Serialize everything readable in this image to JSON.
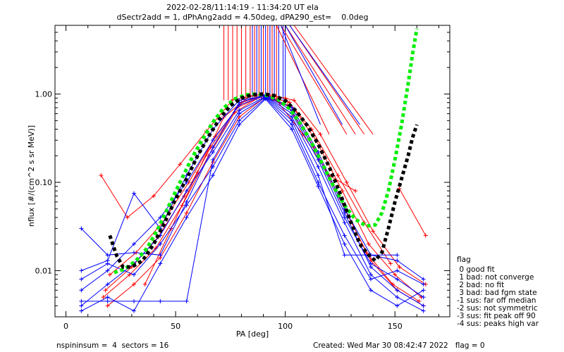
{
  "title_line1": "2022-02-28/11:14:19 - 11:34:20 UT ela",
  "title_line2": "dSectr2add = 1, dPhAng2add = 4.50deg, dPA290_est=    0.0deg",
  "footer": {
    "left": "nspininsum =  4  sectors = 16",
    "right": "Created: Wed Mar 30 08:42:47 2022   flag = 0"
  },
  "legend": {
    "title": "flag",
    "items": [
      " 0 good fit",
      " 1 bad: not converge",
      " 2 bad: no fit",
      " 3 bad: bad fgm state",
      "-1 sus: far off median",
      "-2 sus: not symmetric",
      "-3 sus: fit peak off 90",
      "-4 sus: peaks high var"
    ]
  },
  "chart_data": {
    "type": "line",
    "title": "2022-02-28/11:14:19 - 11:34:20 UT ela",
    "subtitle": "dSectr2add = 1, dPhAng2add = 4.50deg, dPA290_est=    0.0deg",
    "xlabel": "PA [deg]",
    "ylabel": "nflux [#/(cm^2 s sr MeV)]",
    "xlim": [
      -5,
      175
    ],
    "ylim": [
      0.003,
      6.0
    ],
    "y_scale": "log",
    "x_ticks": [
      0,
      50,
      100,
      150
    ],
    "x_tick_labels": [
      "0",
      "50",
      "100",
      "150"
    ],
    "y_ticks": [
      0.01,
      0.1,
      1.0
    ],
    "y_tick_labels": [
      "0.01",
      "0.10",
      "1.00"
    ],
    "grid": false,
    "legend_position": "right",
    "series": [
      {
        "color": "#ff0000",
        "marker": "+",
        "x": [
          16,
          28,
          40,
          52,
          64,
          76,
          88,
          100,
          112,
          124,
          136,
          148
        ],
        "y": [
          0.12,
          0.04,
          0.07,
          0.16,
          0.38,
          0.86,
          0.98,
          0.9,
          0.4,
          0.12,
          0.035,
          0.012
        ]
      },
      {
        "color": "#ff0000",
        "marker": "+",
        "x": [
          18,
          30,
          42,
          54,
          66,
          78,
          90,
          102,
          114,
          126,
          138,
          150,
          162
        ],
        "y": [
          0.006,
          0.011,
          0.024,
          0.07,
          0.25,
          0.7,
          0.97,
          0.8,
          0.3,
          0.08,
          0.02,
          0.009,
          0.005
        ]
      },
      {
        "color": "#ff0000",
        "marker": "+",
        "x": [
          17,
          29,
          41,
          53,
          65,
          77,
          89,
          101,
          113,
          125,
          137,
          149,
          161
        ],
        "y": [
          0.005,
          0.009,
          0.018,
          0.055,
          0.2,
          0.62,
          0.95,
          0.75,
          0.25,
          0.065,
          0.016,
          0.007,
          0.0045
        ]
      },
      {
        "color": "#ff0000",
        "marker": "+",
        "x": [
          19,
          31,
          43,
          55,
          67,
          79,
          91,
          103,
          115,
          127,
          139,
          151,
          163
        ],
        "y": [
          0.004,
          0.007,
          0.014,
          0.045,
          0.17,
          0.55,
          0.93,
          0.7,
          0.22,
          0.05,
          0.013,
          0.006,
          0.004
        ]
      },
      {
        "color": "#ff0000",
        "marker": "+",
        "x": [
          20,
          32,
          44,
          56,
          68,
          80,
          92,
          104,
          116,
          128,
          140,
          152,
          164
        ],
        "y": [
          0.009,
          0.016,
          0.035,
          0.1,
          0.33,
          0.8,
          0.99,
          0.85,
          0.35,
          0.1,
          0.028,
          0.011,
          0.007
        ]
      },
      {
        "color": "#ff0000",
        "marker": "+",
        "x": [
          36,
          48,
          60,
          72,
          84,
          96,
          108,
          120,
          132
        ],
        "y": [
          0.007,
          0.03,
          0.13,
          0.55,
          0.96,
          0.85,
          0.35,
          0.12,
          0.08
        ]
      },
      {
        "color": "#ff0000",
        "marker": "+",
        "x": [
          152,
          164
        ],
        "y": [
          0.085,
          0.025
        ]
      },
      {
        "color": "#0000ff",
        "marker": "+",
        "x": [
          7,
          19,
          31,
          43,
          55,
          67,
          79,
          91,
          103,
          115,
          127,
          139,
          151,
          163
        ],
        "y": [
          0.03,
          0.015,
          0.016,
          0.015,
          0.06,
          0.25,
          0.8,
          0.98,
          0.7,
          0.22,
          0.05,
          0.015,
          0.013,
          0.008
        ]
      },
      {
        "color": "#0000ff",
        "marker": "+",
        "x": [
          7,
          19,
          31,
          43,
          55,
          67,
          79,
          91,
          103,
          115,
          127,
          139,
          151,
          163
        ],
        "y": [
          0.01,
          0.013,
          0.075,
          0.03,
          0.12,
          0.4,
          0.85,
          0.95,
          0.6,
          0.18,
          0.04,
          0.012,
          0.008,
          0.005
        ]
      },
      {
        "color": "#0000ff",
        "marker": "+",
        "x": [
          7,
          19,
          31,
          43,
          55,
          67,
          79,
          91,
          103,
          115,
          127,
          139,
          151,
          163
        ],
        "y": [
          0.006,
          0.01,
          0.02,
          0.04,
          0.1,
          0.3,
          0.75,
          0.97,
          0.65,
          0.2,
          0.045,
          0.011,
          0.006,
          0.004
        ]
      },
      {
        "color": "#0000ff",
        "marker": "+",
        "x": [
          7,
          19,
          31,
          43,
          55,
          67,
          79,
          91,
          103,
          115,
          127,
          139,
          151,
          163
        ],
        "y": [
          0.004,
          0.007,
          0.012,
          0.025,
          0.08,
          0.22,
          0.65,
          0.94,
          0.55,
          0.15,
          0.035,
          0.009,
          0.005,
          0.0035
        ]
      },
      {
        "color": "#0000ff",
        "marker": "+",
        "x": [
          7,
          19,
          31,
          43,
          55,
          67,
          79,
          91,
          103,
          115,
          127,
          139,
          151
        ],
        "y": [
          0.0045,
          0.0045,
          0.0045,
          0.0045,
          0.0045,
          0.18,
          0.6,
          0.92,
          0.5,
          0.12,
          0.015,
          0.015,
          0.015
        ]
      },
      {
        "color": "#0000ff",
        "marker": "+",
        "x": [
          7,
          19,
          31,
          43,
          55,
          67,
          79,
          91,
          103,
          115,
          127,
          139,
          151,
          163
        ],
        "y": [
          0.008,
          0.012,
          0.009,
          0.02,
          0.055,
          0.15,
          0.5,
          0.9,
          0.45,
          0.1,
          0.025,
          0.008,
          0.01,
          0.007
        ]
      },
      {
        "color": "#0000ff",
        "marker": "+",
        "x": [
          7,
          19,
          31,
          43,
          55,
          67,
          79,
          91,
          103,
          115,
          127,
          139,
          151,
          163
        ],
        "y": [
          0.0035,
          0.005,
          0.0035,
          0.012,
          0.04,
          0.12,
          0.45,
          0.88,
          0.4,
          0.09,
          0.02,
          0.006,
          0.004,
          0.006
        ]
      }
    ],
    "fit_curves": [
      {
        "color": "#00ee00",
        "style": "dotted-thick",
        "x": [
          22,
          27,
          32,
          37,
          42,
          47,
          52,
          57,
          62,
          67,
          72,
          77,
          82,
          87,
          92,
          97,
          102,
          107,
          112,
          117,
          122,
          127,
          132,
          137,
          141,
          144,
          147,
          150,
          153,
          156,
          158,
          160
        ],
        "y": [
          0.0095,
          0.0105,
          0.013,
          0.018,
          0.03,
          0.055,
          0.1,
          0.18,
          0.3,
          0.48,
          0.7,
          0.88,
          0.98,
          1.0,
          0.96,
          0.86,
          0.68,
          0.46,
          0.28,
          0.16,
          0.09,
          0.055,
          0.038,
          0.032,
          0.033,
          0.045,
          0.08,
          0.18,
          0.45,
          1.3,
          2.8,
          5.5
        ]
      },
      {
        "color": "#000000",
        "style": "dotted-thick",
        "x": [
          20,
          23,
          26,
          30,
          35,
          40,
          45,
          50,
          55,
          60,
          65,
          70,
          75,
          80,
          85,
          90,
          95,
          100,
          105,
          110,
          115,
          120,
          125,
          130,
          134,
          138,
          141,
          144,
          147,
          150,
          153,
          156,
          158,
          160
        ],
        "y": [
          0.025,
          0.015,
          0.011,
          0.011,
          0.013,
          0.02,
          0.035,
          0.065,
          0.11,
          0.2,
          0.33,
          0.52,
          0.74,
          0.9,
          0.98,
          1.0,
          0.96,
          0.84,
          0.64,
          0.44,
          0.27,
          0.15,
          0.075,
          0.035,
          0.02,
          0.015,
          0.013,
          0.016,
          0.03,
          0.06,
          0.11,
          0.2,
          0.32,
          0.45
        ]
      }
    ],
    "spikes": {
      "red_x": [
        72,
        74,
        76,
        78,
        80,
        82,
        84,
        86,
        88,
        90,
        92,
        94,
        96
      ],
      "blue_x": [
        85,
        87,
        89,
        91,
        93,
        95,
        97,
        99,
        100
      ],
      "red_tilted": [
        [
          96,
          120
        ],
        [
          98,
          128
        ],
        [
          100,
          132
        ],
        [
          102,
          136
        ],
        [
          104,
          140
        ]
      ],
      "blue_tilted": [
        [
          98,
          116
        ],
        [
          100,
          126
        ],
        [
          102,
          134
        ]
      ]
    }
  }
}
